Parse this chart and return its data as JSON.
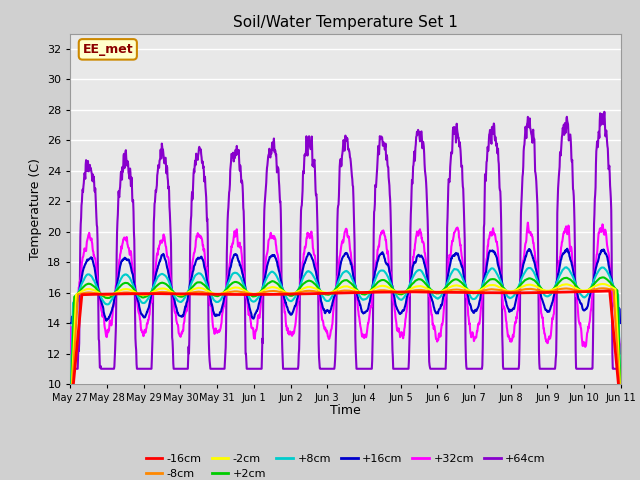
{
  "title": "Soil/Water Temperature Set 1",
  "xlabel": "Time",
  "ylabel": "Temperature (C)",
  "ylim": [
    10,
    33
  ],
  "yticks": [
    10,
    12,
    14,
    16,
    18,
    20,
    22,
    24,
    26,
    28,
    30,
    32
  ],
  "fig_bg": "#d0d0d0",
  "plot_bg": "#e8e8e8",
  "grid_color": "#ffffff",
  "annotation_text": "EE_met",
  "annotation_bg": "#ffffcc",
  "annotation_border": "#cc8800",
  "annotation_text_color": "#8B0000",
  "x_tick_labels": [
    "May 27",
    "May 28",
    "May 29",
    "May 30",
    "May 31",
    "Jun 1",
    "Jun 2",
    "Jun 3",
    "Jun 4",
    "Jun 5",
    "Jun 6",
    "Jun 7",
    "Jun 8",
    "Jun 9",
    "Jun 10",
    "Jun 11"
  ],
  "series": [
    {
      "label": "-16cm",
      "color": "#ff0000",
      "linewidth": 2.0,
      "zorder": 5
    },
    {
      "label": "-8cm",
      "color": "#ff8800",
      "linewidth": 1.5,
      "zorder": 4
    },
    {
      "label": "-2cm",
      "color": "#ffff00",
      "linewidth": 1.5,
      "zorder": 4
    },
    {
      "label": "+2cm",
      "color": "#00cc00",
      "linewidth": 1.5,
      "zorder": 4
    },
    {
      "label": "+8cm",
      "color": "#00cccc",
      "linewidth": 1.5,
      "zorder": 4
    },
    {
      "label": "+16cm",
      "color": "#0000cc",
      "linewidth": 1.5,
      "zorder": 4
    },
    {
      "label": "+32cm",
      "color": "#ff00ff",
      "linewidth": 1.5,
      "zorder": 3
    },
    {
      "label": "+64cm",
      "color": "#8800cc",
      "linewidth": 1.5,
      "zorder": 2
    }
  ]
}
